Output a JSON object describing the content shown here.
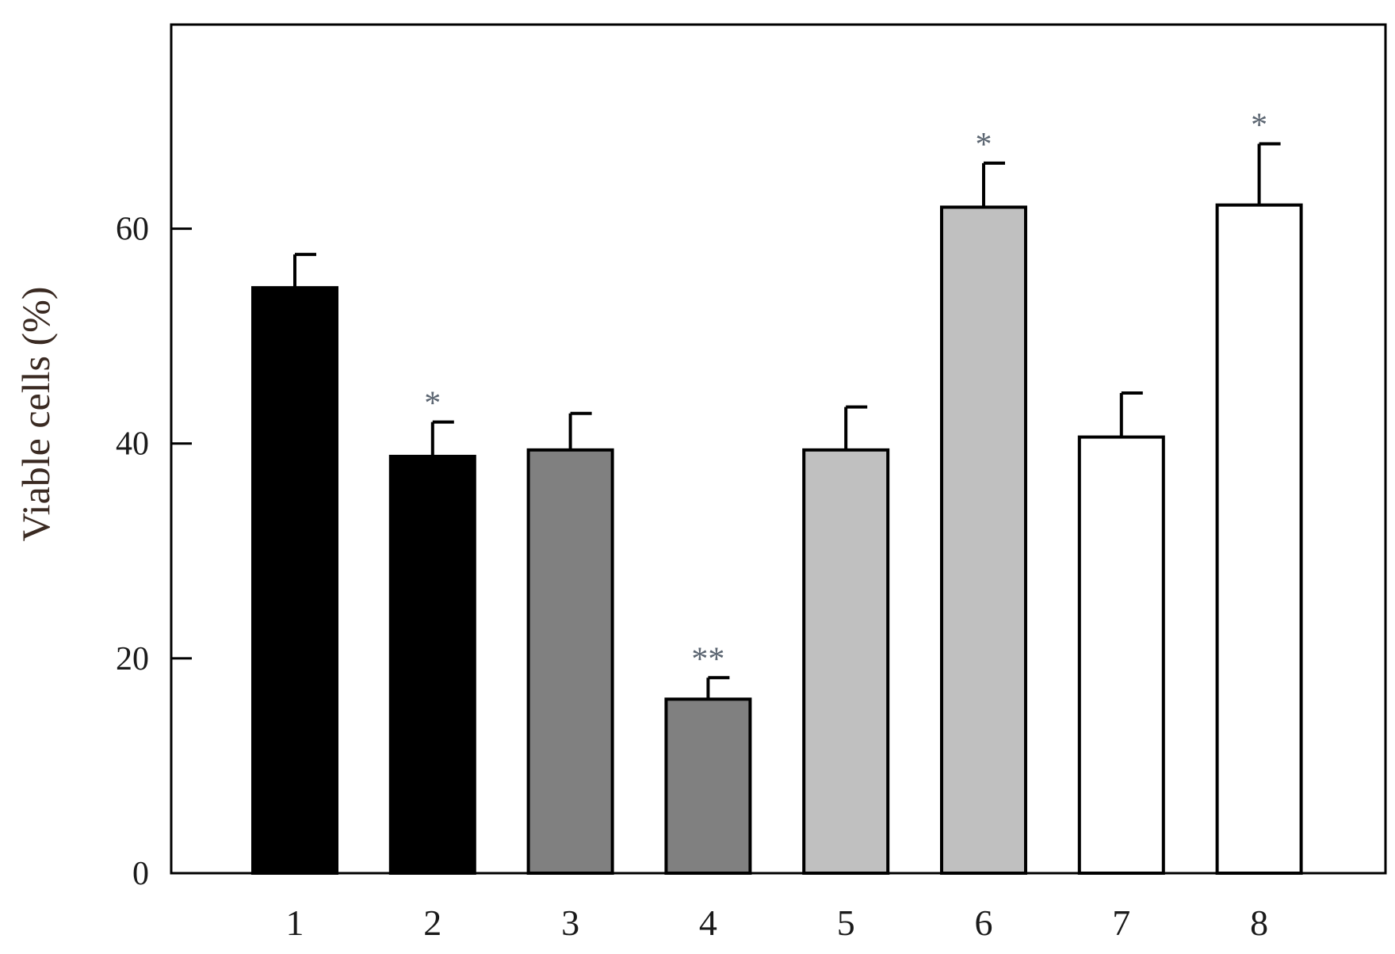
{
  "chart_data": {
    "type": "bar",
    "title": "",
    "xlabel": "",
    "ylabel": "Viable cells (%)",
    "categories": [
      "1",
      "2",
      "3",
      "4",
      "5",
      "6",
      "7",
      "8"
    ],
    "values": [
      54.5,
      38.8,
      39.4,
      16.2,
      39.4,
      62.0,
      40.6,
      62.2
    ],
    "errors": [
      3.1,
      3.2,
      3.4,
      2.0,
      4.0,
      4.1,
      4.1,
      5.7
    ],
    "significance": [
      "",
      "*",
      "",
      "**",
      "",
      "*",
      "",
      "*"
    ],
    "bar_colors": [
      "#000000",
      "#000000",
      "#808080",
      "#808080",
      "#c0c0c0",
      "#c0c0c0",
      "#ffffff",
      "#ffffff"
    ],
    "ylim": [
      0,
      79
    ],
    "yticks": [
      0,
      20,
      40,
      60
    ],
    "grid": false,
    "legend": "none"
  }
}
